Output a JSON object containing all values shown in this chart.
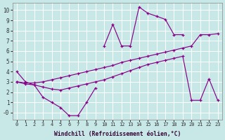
{
  "xlabel": "Windchill (Refroidissement éolien,°C)",
  "bg_color": "#c8e8e8",
  "line_color": "#880088",
  "grid_color": "#ffffff",
  "xlim": [
    -0.5,
    23.5
  ],
  "ylim": [
    -0.7,
    10.7
  ],
  "xticks": [
    0,
    1,
    2,
    3,
    4,
    5,
    6,
    7,
    8,
    9,
    10,
    11,
    12,
    13,
    14,
    15,
    16,
    17,
    18,
    19,
    20,
    21,
    22,
    23
  ],
  "yticks": [
    0,
    1,
    2,
    3,
    4,
    5,
    6,
    7,
    8,
    9,
    10
  ],
  "ytick_labels": [
    "-0",
    "1",
    "2",
    "3",
    "4",
    "5",
    "6",
    "7",
    "8",
    "9",
    "10"
  ],
  "curve_bottom_x": [
    0,
    1,
    2,
    3,
    4,
    5,
    6,
    7,
    8,
    9
  ],
  "curve_bottom_y": [
    4.0,
    3.0,
    2.7,
    1.5,
    1.0,
    0.5,
    -0.3,
    -0.3,
    1.0,
    2.4
  ],
  "curve_top_x": [
    10,
    11,
    12,
    13,
    14,
    15,
    16,
    17,
    18,
    19
  ],
  "curve_top_y": [
    6.5,
    8.6,
    6.5,
    6.5,
    10.3,
    9.7,
    9.4,
    9.1,
    7.6,
    7.6
  ],
  "line_upper_x": [
    0,
    1,
    2,
    3,
    4,
    5,
    6,
    7,
    8,
    9,
    10,
    11,
    12,
    13,
    14,
    15,
    16,
    17,
    18,
    19,
    20,
    21,
    22,
    23
  ],
  "line_upper_y": [
    3.0,
    2.9,
    2.9,
    3.0,
    3.2,
    3.4,
    3.6,
    3.8,
    4.0,
    4.2,
    4.4,
    4.6,
    4.9,
    5.1,
    5.3,
    5.5,
    5.7,
    5.9,
    6.1,
    6.3,
    6.5,
    7.6,
    7.6,
    7.7
  ],
  "line_lower_x": [
    0,
    1,
    2,
    3,
    4,
    5,
    6,
    7,
    8,
    9,
    10,
    11,
    12,
    13,
    14,
    15,
    16,
    17,
    18,
    19,
    20,
    21,
    22,
    23
  ],
  "line_lower_y": [
    3.0,
    2.8,
    2.7,
    2.5,
    2.3,
    2.2,
    2.4,
    2.6,
    2.8,
    3.0,
    3.2,
    3.5,
    3.8,
    4.1,
    4.4,
    4.7,
    4.9,
    5.1,
    5.3,
    5.5,
    1.2,
    1.2,
    3.3,
    1.2
  ]
}
